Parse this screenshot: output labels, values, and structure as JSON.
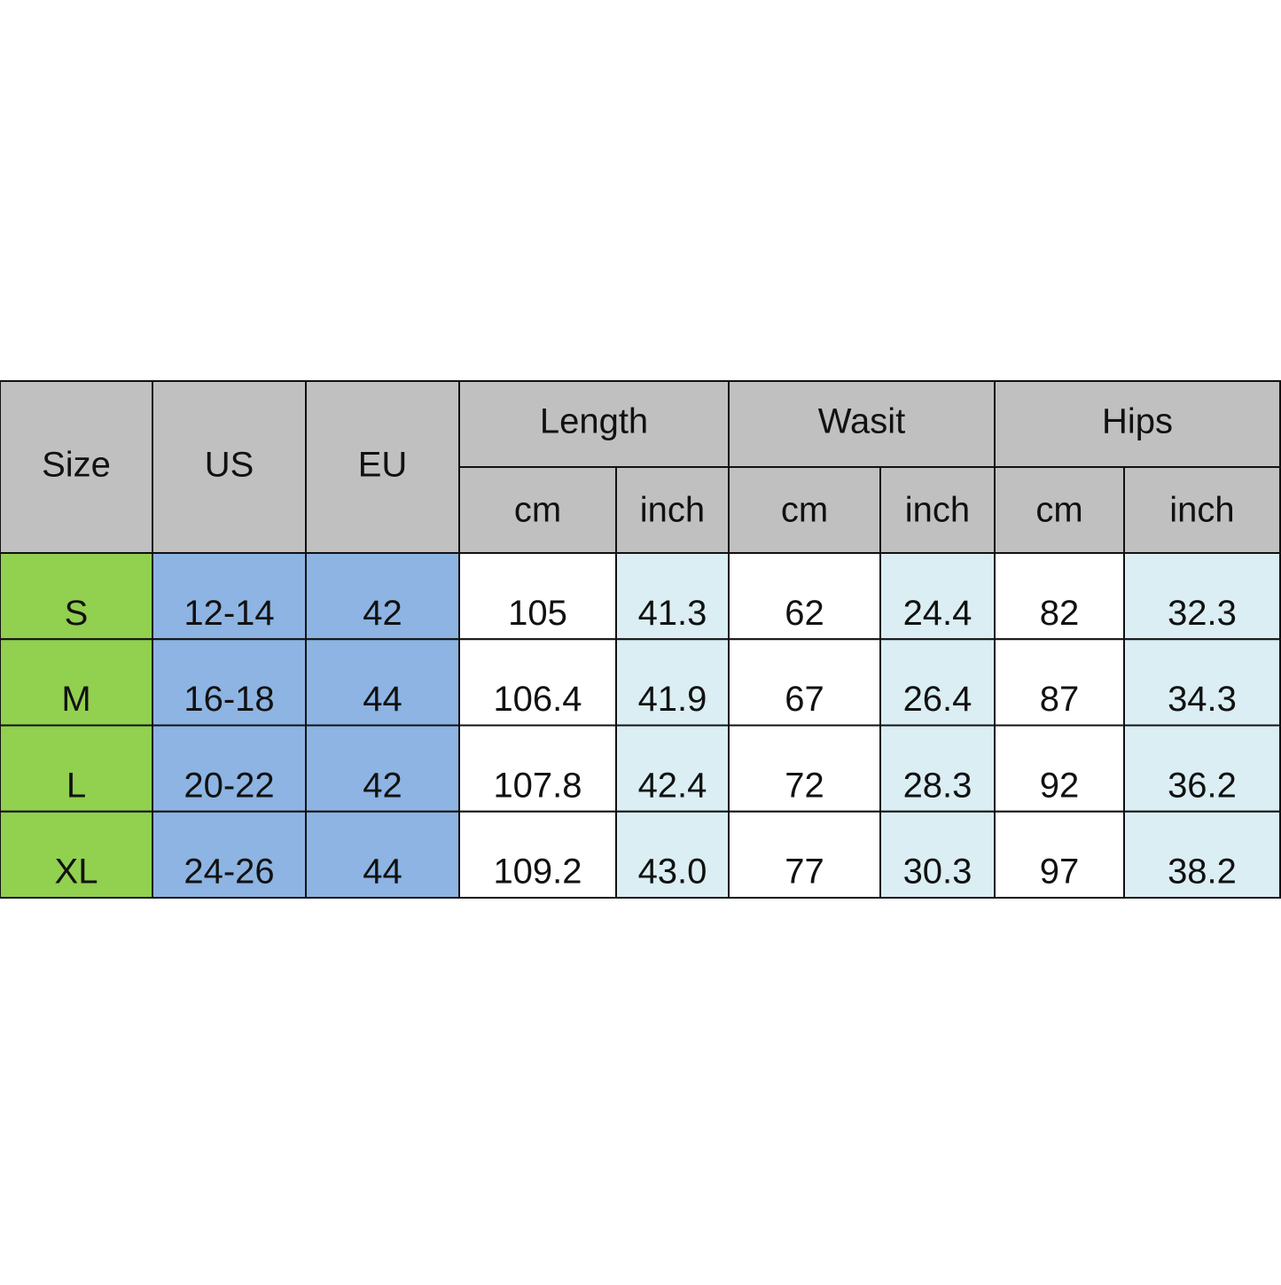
{
  "table": {
    "header": {
      "size": "Size",
      "us": "US",
      "eu": "EU",
      "groups": [
        "Length",
        "Wasit",
        "Hips"
      ],
      "units": [
        "cm",
        "inch",
        "cm",
        "inch",
        "cm",
        "inch"
      ]
    },
    "rows": [
      [
        "S",
        "12-14",
        "42",
        "105",
        "41.3",
        "62",
        "24.4",
        "82",
        "32.3"
      ],
      [
        "M",
        "16-18",
        "44",
        "106.4",
        "41.9",
        "67",
        "26.4",
        "87",
        "34.3"
      ],
      [
        "L",
        "20-22",
        "42",
        "107.8",
        "42.4",
        "72",
        "28.3",
        "92",
        "36.2"
      ],
      [
        "XL",
        "24-26",
        "44",
        "109.2",
        "43.0",
        "77",
        "30.3",
        "97",
        "38.2"
      ]
    ]
  }
}
